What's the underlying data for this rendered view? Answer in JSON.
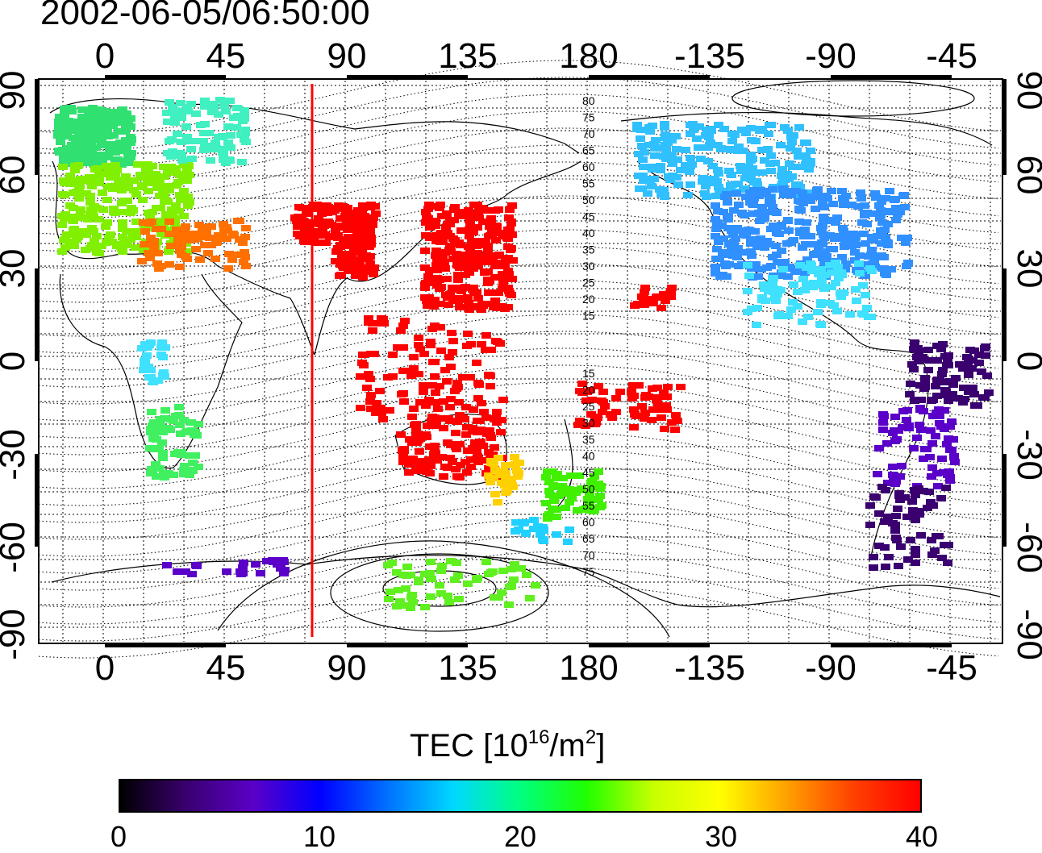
{
  "timestamp": "2002-06-05/06:50:00",
  "map": {
    "top_ticks": [
      "0",
      "45",
      "90",
      "135",
      "180",
      "-135",
      "-90",
      "-45"
    ],
    "bottom_ticks": [
      "0",
      "45",
      "90",
      "135",
      "180",
      "-135",
      "-90",
      "-45"
    ],
    "left_ticks": [
      "90",
      "60",
      "30",
      "0",
      "-30",
      "-60",
      "-90"
    ],
    "right_ticks": [
      "90",
      "60",
      "30",
      "0",
      "-30",
      "-60",
      "-90"
    ],
    "north_contours": [
      "80",
      "75",
      "70",
      "65",
      "60",
      "55",
      "50",
      "45",
      "40",
      "35",
      "30",
      "25",
      "20",
      "15"
    ],
    "south_contours": [
      "15",
      "20",
      "25",
      "30",
      "35",
      "40",
      "45",
      "50",
      "55",
      "60",
      "65",
      "70",
      "75"
    ],
    "meridian_longitude": 77,
    "meridian_color": "#ff0000"
  },
  "colorbar": {
    "title_prefix": "TEC  [10",
    "title_exp1": "16",
    "title_mid": "/m",
    "title_exp2": "2",
    "title_suffix": "]",
    "ticks": [
      "0",
      "10",
      "20",
      "30",
      "40"
    ],
    "min": 0,
    "max": 40,
    "colors": [
      "#000000",
      "#3a0070",
      "#5a00c8",
      "#0000ff",
      "#0070ff",
      "#00d8ff",
      "#00ff80",
      "#20ff00",
      "#c8ff00",
      "#ffff00",
      "#ffa000",
      "#ff4000",
      "#ff0000"
    ]
  }
}
